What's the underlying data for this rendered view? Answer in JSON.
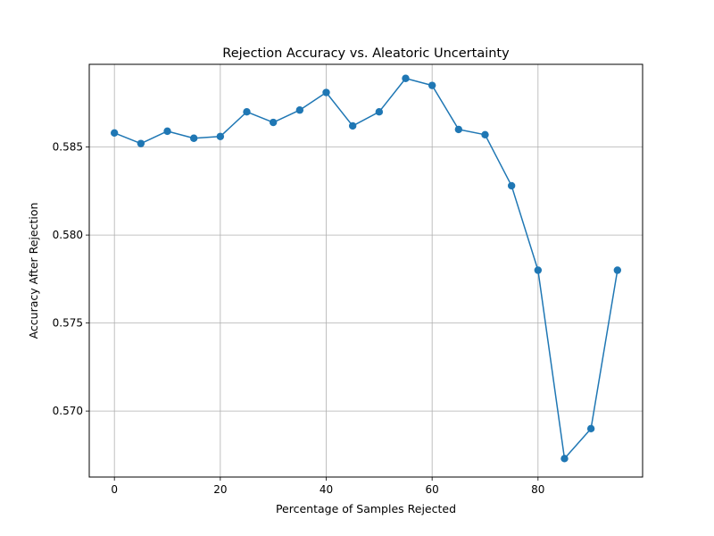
{
  "chart_data": {
    "type": "line",
    "title": "Rejection Accuracy vs. Aleatoric Uncertainty",
    "xlabel": "Percentage of Samples Rejected",
    "ylabel": "Accuracy After Rejection",
    "xlim": [
      -4.75,
      99.75
    ],
    "ylim": [
      0.56625,
      0.5897
    ],
    "xticks": [
      0,
      20,
      40,
      60,
      80
    ],
    "xtick_labels": [
      "0",
      "20",
      "40",
      "60",
      "80"
    ],
    "yticks": [
      0.57,
      0.575,
      0.58,
      0.585
    ],
    "ytick_labels": [
      "0.570",
      "0.575",
      "0.580",
      "0.585"
    ],
    "grid": true,
    "marker": "circle",
    "color": "#1f77b4",
    "series": [
      {
        "x": [
          0,
          5,
          10,
          15,
          20,
          25,
          30,
          35,
          40,
          45,
          50,
          55,
          60,
          65,
          70,
          75,
          80,
          85,
          90,
          95
        ],
        "values": [
          0.5858,
          0.5852,
          0.5859,
          0.5855,
          0.5856,
          0.587,
          0.5864,
          0.5871,
          0.5881,
          0.5862,
          0.587,
          0.5889,
          0.5885,
          0.586,
          0.5857,
          0.5828,
          0.578,
          0.5673,
          0.569,
          0.578
        ]
      }
    ]
  }
}
